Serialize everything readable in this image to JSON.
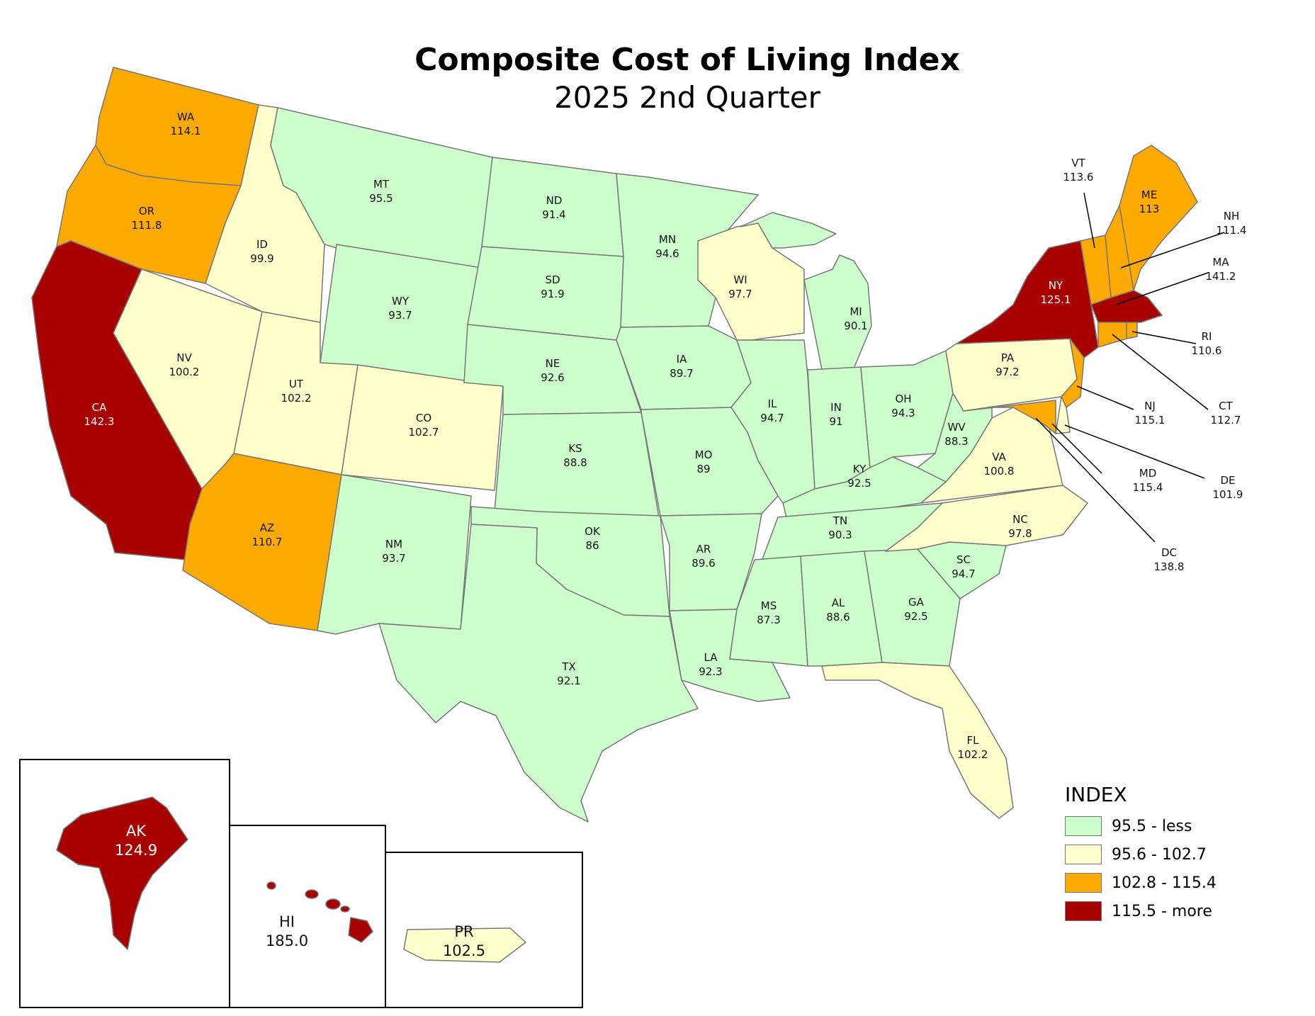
{
  "title": "Composite Cost of Living Index",
  "subtitle": "2025 2nd Quarter",
  "colors": {
    "low": "#ccffcc",
    "mid": "#ffffcc",
    "high": "#ffaa00",
    "top": "#a80000",
    "border": "#777777"
  },
  "legend": {
    "title": "INDEX",
    "items": [
      {
        "label": "95.5 - less",
        "color": "#ccffcc"
      },
      {
        "label": "95.6 - 102.7",
        "color": "#ffffcc"
      },
      {
        "label": "102.8 - 115.4",
        "color": "#ffaa00"
      },
      {
        "label": "115.5 - more",
        "color": "#a80000"
      }
    ]
  },
  "states": {
    "WA": {
      "code": "WA",
      "value": "114.1"
    },
    "OR": {
      "code": "OR",
      "value": "111.8"
    },
    "CA": {
      "code": "CA",
      "value": "142.3"
    },
    "ID": {
      "code": "ID",
      "value": "99.9"
    },
    "NV": {
      "code": "NV",
      "value": "100.2"
    },
    "MT": {
      "code": "MT",
      "value": "95.5"
    },
    "WY": {
      "code": "WY",
      "value": "93.7"
    },
    "UT": {
      "code": "UT",
      "value": "102.2"
    },
    "AZ": {
      "code": "AZ",
      "value": "110.7"
    },
    "CO": {
      "code": "CO",
      "value": "102.7"
    },
    "NM": {
      "code": "NM",
      "value": "93.7"
    },
    "ND": {
      "code": "ND",
      "value": "91.4"
    },
    "SD": {
      "code": "SD",
      "value": "91.9"
    },
    "NE": {
      "code": "NE",
      "value": "92.6"
    },
    "KS": {
      "code": "KS",
      "value": "88.8"
    },
    "OK": {
      "code": "OK",
      "value": "86"
    },
    "TX": {
      "code": "TX",
      "value": "92.1"
    },
    "MN": {
      "code": "MN",
      "value": "94.6"
    },
    "IA": {
      "code": "IA",
      "value": "89.7"
    },
    "MO": {
      "code": "MO",
      "value": "89"
    },
    "AR": {
      "code": "AR",
      "value": "89.6"
    },
    "LA": {
      "code": "LA",
      "value": "92.3"
    },
    "WI": {
      "code": "WI",
      "value": "97.7"
    },
    "IL": {
      "code": "IL",
      "value": "94.7"
    },
    "MI": {
      "code": "MI",
      "value": "90.1"
    },
    "IN": {
      "code": "IN",
      "value": "91"
    },
    "OH": {
      "code": "OH",
      "value": "94.3"
    },
    "KY": {
      "code": "KY",
      "value": "92.5"
    },
    "TN": {
      "code": "TN",
      "value": "90.3"
    },
    "MS": {
      "code": "MS",
      "value": "87.3"
    },
    "AL": {
      "code": "AL",
      "value": "88.6"
    },
    "GA": {
      "code": "GA",
      "value": "92.5"
    },
    "FL": {
      "code": "FL",
      "value": "102.2"
    },
    "SC": {
      "code": "SC",
      "value": "94.7"
    },
    "NC": {
      "code": "NC",
      "value": "97.8"
    },
    "VA": {
      "code": "VA",
      "value": "100.8"
    },
    "WV": {
      "code": "WV",
      "value": "88.3"
    },
    "PA": {
      "code": "PA",
      "value": "97.2"
    },
    "NY": {
      "code": "NY",
      "value": "125.1"
    },
    "VT": {
      "code": "VT",
      "value": "113.6"
    },
    "NH": {
      "code": "NH",
      "value": "111.4"
    },
    "ME": {
      "code": "ME",
      "value": "113"
    },
    "MA": {
      "code": "MA",
      "value": "141.2"
    },
    "RI": {
      "code": "RI",
      "value": "110.6"
    },
    "CT": {
      "code": "CT",
      "value": "112.7"
    },
    "NJ": {
      "code": "NJ",
      "value": "115.1"
    },
    "DE": {
      "code": "DE",
      "value": "101.9"
    },
    "MD": {
      "code": "MD",
      "value": "115.4"
    },
    "DC": {
      "code": "DC",
      "value": "138.8"
    },
    "AK": {
      "code": "AK",
      "value": "124.9"
    },
    "HI": {
      "code": "HI",
      "value": "185.0"
    },
    "PR": {
      "code": "PR",
      "value": "102.5"
    }
  }
}
